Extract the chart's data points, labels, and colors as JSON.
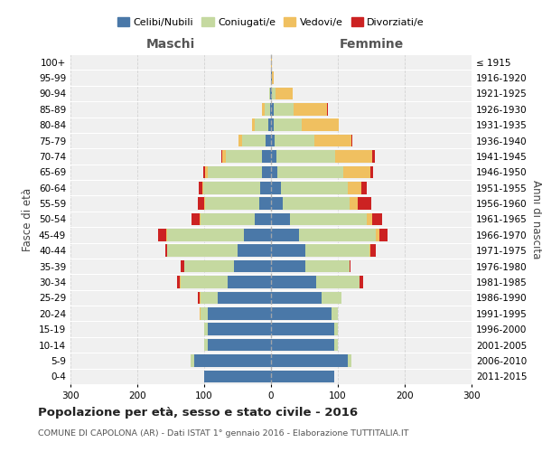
{
  "age_groups": [
    "0-4",
    "5-9",
    "10-14",
    "15-19",
    "20-24",
    "25-29",
    "30-34",
    "35-39",
    "40-44",
    "45-49",
    "50-54",
    "55-59",
    "60-64",
    "65-69",
    "70-74",
    "75-79",
    "80-84",
    "85-89",
    "90-94",
    "95-99",
    "100+"
  ],
  "birth_years": [
    "2011-2015",
    "2006-2010",
    "2001-2005",
    "1996-2000",
    "1991-1995",
    "1986-1990",
    "1981-1985",
    "1976-1980",
    "1971-1975",
    "1966-1970",
    "1961-1965",
    "1956-1960",
    "1951-1955",
    "1946-1950",
    "1941-1945",
    "1936-1940",
    "1931-1935",
    "1926-1930",
    "1921-1925",
    "1916-1920",
    "≤ 1915"
  ],
  "colors": {
    "celibi": "#4a78a8",
    "coniugati": "#c5d9a0",
    "vedovi": "#f0c060",
    "divorziati": "#cc2222"
  },
  "maschi": {
    "celibi": [
      100,
      115,
      95,
      95,
      95,
      80,
      65,
      55,
      50,
      40,
      25,
      18,
      16,
      14,
      13,
      8,
      4,
      2,
      1,
      0,
      0
    ],
    "coniugati": [
      0,
      5,
      5,
      5,
      10,
      25,
      70,
      75,
      105,
      115,
      80,
      80,
      85,
      80,
      55,
      35,
      20,
      8,
      2,
      0,
      0
    ],
    "vedovi": [
      0,
      0,
      0,
      0,
      2,
      2,
      1,
      0,
      1,
      2,
      2,
      2,
      2,
      5,
      5,
      5,
      5,
      3,
      0,
      0,
      0
    ],
    "divorziati": [
      0,
      0,
      0,
      0,
      0,
      2,
      5,
      5,
      2,
      12,
      12,
      10,
      5,
      2,
      2,
      0,
      0,
      0,
      0,
      0,
      0
    ]
  },
  "femmine": {
    "celibi": [
      95,
      115,
      95,
      95,
      90,
      75,
      68,
      52,
      52,
      42,
      28,
      18,
      15,
      10,
      8,
      5,
      4,
      4,
      2,
      1,
      0
    ],
    "coniugati": [
      0,
      5,
      5,
      5,
      10,
      30,
      65,
      65,
      95,
      115,
      115,
      100,
      100,
      98,
      88,
      60,
      42,
      30,
      5,
      1,
      0
    ],
    "vedovi": [
      0,
      0,
      0,
      0,
      0,
      0,
      0,
      0,
      2,
      5,
      8,
      12,
      20,
      40,
      55,
      55,
      55,
      50,
      25,
      2,
      1
    ],
    "divorziati": [
      0,
      0,
      0,
      0,
      0,
      0,
      5,
      2,
      8,
      12,
      15,
      20,
      8,
      5,
      5,
      2,
      0,
      1,
      0,
      0,
      0
    ]
  },
  "xlim": 300,
  "title": "Popolazione per età, sesso e stato civile - 2016",
  "subtitle": "COMUNE DI CAPOLONA (AR) - Dati ISTAT 1° gennaio 2016 - Elaborazione TUTTITALIA.IT",
  "xlabel_left": "Maschi",
  "xlabel_right": "Femmine",
  "ylabel_left": "Fasce di età",
  "ylabel_right": "Anni di nascita",
  "background_color": "#f0f0f0",
  "grid_color": "#cccccc"
}
